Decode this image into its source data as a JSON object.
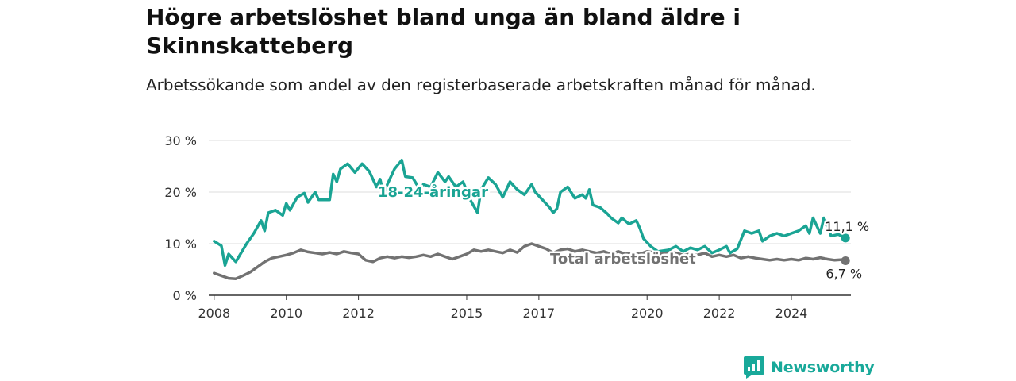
{
  "title": "Högre arbetslöshet bland unga än bland äldre i Skinnskatteberg",
  "subtitle": "Arbetssökande som andel av den registerbaserade arbetskraften månad för månad.",
  "brand": "Newsworthy",
  "colors": {
    "youth": "#1aa494",
    "total": "#727272",
    "grid": "#dddddd",
    "brand": "#19a99a"
  },
  "chart_data": {
    "type": "line",
    "x_ticks": [
      "2008",
      "2010",
      "2012",
      "2015",
      "2017",
      "2020",
      "2022",
      "2024"
    ],
    "y_ticks": [
      "0 %",
      "10 %",
      "20 %",
      "30 %"
    ],
    "ylim": [
      0,
      30
    ],
    "xlim": [
      2007.85,
      2025.65
    ],
    "grid": true,
    "series": [
      {
        "name": "18-24-åringar",
        "color": "#1aa494",
        "end_label": "11,1 %",
        "points": [
          [
            2008.0,
            10.5
          ],
          [
            2008.2,
            9.6
          ],
          [
            2008.3,
            5.8
          ],
          [
            2008.4,
            8.0
          ],
          [
            2008.6,
            6.5
          ],
          [
            2008.9,
            10.0
          ],
          [
            2009.1,
            12.0
          ],
          [
            2009.3,
            14.5
          ],
          [
            2009.4,
            12.5
          ],
          [
            2009.5,
            16.0
          ],
          [
            2009.7,
            16.5
          ],
          [
            2009.9,
            15.5
          ],
          [
            2010.0,
            17.8
          ],
          [
            2010.1,
            16.5
          ],
          [
            2010.3,
            19.0
          ],
          [
            2010.5,
            19.8
          ],
          [
            2010.6,
            18.0
          ],
          [
            2010.8,
            20.0
          ],
          [
            2010.9,
            18.5
          ],
          [
            2011.2,
            18.5
          ],
          [
            2011.3,
            23.5
          ],
          [
            2011.4,
            22.0
          ],
          [
            2011.5,
            24.5
          ],
          [
            2011.7,
            25.5
          ],
          [
            2011.9,
            23.8
          ],
          [
            2012.1,
            25.5
          ],
          [
            2012.3,
            24.0
          ],
          [
            2012.5,
            21.0
          ],
          [
            2012.6,
            22.5
          ],
          [
            2012.7,
            19.5
          ],
          [
            2012.8,
            21.5
          ],
          [
            2013.0,
            24.5
          ],
          [
            2013.2,
            26.2
          ],
          [
            2013.3,
            23.0
          ],
          [
            2013.5,
            22.8
          ],
          [
            2013.7,
            20.5
          ],
          [
            2013.8,
            21.5
          ],
          [
            2014.0,
            21.0
          ],
          [
            2014.2,
            23.8
          ],
          [
            2014.4,
            22.0
          ],
          [
            2014.5,
            23.0
          ],
          [
            2014.7,
            21.0
          ],
          [
            2014.9,
            22.0
          ],
          [
            2015.1,
            18.5
          ],
          [
            2015.3,
            16.0
          ],
          [
            2015.4,
            20.5
          ],
          [
            2015.6,
            22.8
          ],
          [
            2015.8,
            21.5
          ],
          [
            2016.0,
            19.0
          ],
          [
            2016.2,
            22.0
          ],
          [
            2016.4,
            20.5
          ],
          [
            2016.6,
            19.5
          ],
          [
            2016.8,
            21.5
          ],
          [
            2016.9,
            20.0
          ],
          [
            2017.3,
            17.0
          ],
          [
            2017.4,
            16.0
          ],
          [
            2017.5,
            16.8
          ],
          [
            2017.6,
            20.0
          ],
          [
            2017.8,
            21.0
          ],
          [
            2018.0,
            18.8
          ],
          [
            2018.2,
            19.5
          ],
          [
            2018.3,
            18.8
          ],
          [
            2018.4,
            20.5
          ],
          [
            2018.5,
            17.5
          ],
          [
            2018.7,
            17.0
          ],
          [
            2018.9,
            15.8
          ],
          [
            2019.0,
            15.0
          ],
          [
            2019.2,
            14.0
          ],
          [
            2019.3,
            15.0
          ],
          [
            2019.5,
            13.8
          ],
          [
            2019.7,
            14.5
          ],
          [
            2019.8,
            13.0
          ],
          [
            2019.9,
            11.0
          ],
          [
            2020.1,
            9.5
          ],
          [
            2020.3,
            8.5
          ],
          [
            2020.6,
            8.8
          ],
          [
            2020.8,
            9.5
          ],
          [
            2021.0,
            8.5
          ],
          [
            2021.2,
            9.2
          ],
          [
            2021.4,
            8.8
          ],
          [
            2021.6,
            9.5
          ],
          [
            2021.8,
            8.2
          ],
          [
            2022.0,
            8.8
          ],
          [
            2022.2,
            9.5
          ],
          [
            2022.3,
            8.2
          ],
          [
            2022.5,
            9.0
          ],
          [
            2022.7,
            12.5
          ],
          [
            2022.9,
            12.0
          ],
          [
            2023.1,
            12.5
          ],
          [
            2023.2,
            10.5
          ],
          [
            2023.4,
            11.5
          ],
          [
            2023.6,
            12.0
          ],
          [
            2023.8,
            11.5
          ],
          [
            2024.0,
            12.0
          ],
          [
            2024.2,
            12.5
          ],
          [
            2024.4,
            13.5
          ],
          [
            2024.5,
            12.0
          ],
          [
            2024.6,
            15.0
          ],
          [
            2024.8,
            12.0
          ],
          [
            2024.9,
            15.0
          ],
          [
            2025.0,
            13.5
          ],
          [
            2025.1,
            11.5
          ],
          [
            2025.3,
            11.8
          ],
          [
            2025.5,
            11.1
          ]
        ]
      },
      {
        "name": "Total arbetslöshet",
        "color": "#727272",
        "end_label": "6,7 %",
        "points": [
          [
            2008.0,
            4.3
          ],
          [
            2008.2,
            3.8
          ],
          [
            2008.4,
            3.3
          ],
          [
            2008.6,
            3.2
          ],
          [
            2008.8,
            3.8
          ],
          [
            2009.0,
            4.5
          ],
          [
            2009.2,
            5.5
          ],
          [
            2009.4,
            6.5
          ],
          [
            2009.6,
            7.2
          ],
          [
            2009.8,
            7.5
          ],
          [
            2010.0,
            7.8
          ],
          [
            2010.2,
            8.2
          ],
          [
            2010.4,
            8.8
          ],
          [
            2010.6,
            8.4
          ],
          [
            2010.8,
            8.2
          ],
          [
            2011.0,
            8.0
          ],
          [
            2011.2,
            8.3
          ],
          [
            2011.4,
            8.0
          ],
          [
            2011.6,
            8.5
          ],
          [
            2011.8,
            8.2
          ],
          [
            2012.0,
            8.0
          ],
          [
            2012.2,
            6.8
          ],
          [
            2012.4,
            6.5
          ],
          [
            2012.6,
            7.2
          ],
          [
            2012.8,
            7.5
          ],
          [
            2013.0,
            7.2
          ],
          [
            2013.2,
            7.5
          ],
          [
            2013.4,
            7.3
          ],
          [
            2013.6,
            7.5
          ],
          [
            2013.8,
            7.8
          ],
          [
            2014.0,
            7.5
          ],
          [
            2014.2,
            8.0
          ],
          [
            2014.4,
            7.5
          ],
          [
            2014.6,
            7.0
          ],
          [
            2014.8,
            7.5
          ],
          [
            2015.0,
            8.0
          ],
          [
            2015.2,
            8.8
          ],
          [
            2015.4,
            8.5
          ],
          [
            2015.6,
            8.8
          ],
          [
            2015.8,
            8.5
          ],
          [
            2016.0,
            8.2
          ],
          [
            2016.2,
            8.8
          ],
          [
            2016.4,
            8.3
          ],
          [
            2016.6,
            9.5
          ],
          [
            2016.8,
            10.0
          ],
          [
            2017.0,
            9.5
          ],
          [
            2017.2,
            9.0
          ],
          [
            2017.4,
            8.2
          ],
          [
            2017.6,
            8.8
          ],
          [
            2017.8,
            9.0
          ],
          [
            2018.0,
            8.5
          ],
          [
            2018.2,
            8.8
          ],
          [
            2018.4,
            8.5
          ],
          [
            2018.6,
            8.2
          ],
          [
            2018.8,
            8.5
          ],
          [
            2019.0,
            8.0
          ],
          [
            2019.2,
            8.5
          ],
          [
            2019.4,
            8.0
          ],
          [
            2019.6,
            8.2
          ],
          [
            2019.8,
            8.0
          ],
          [
            2020.0,
            8.5
          ],
          [
            2020.2,
            8.3
          ],
          [
            2020.4,
            8.0
          ],
          [
            2020.6,
            8.5
          ],
          [
            2020.8,
            8.2
          ],
          [
            2021.0,
            7.8
          ],
          [
            2021.2,
            8.0
          ],
          [
            2021.4,
            7.8
          ],
          [
            2021.6,
            8.2
          ],
          [
            2021.8,
            7.5
          ],
          [
            2022.0,
            7.8
          ],
          [
            2022.2,
            7.5
          ],
          [
            2022.4,
            7.8
          ],
          [
            2022.6,
            7.2
          ],
          [
            2022.8,
            7.5
          ],
          [
            2023.0,
            7.2
          ],
          [
            2023.2,
            7.0
          ],
          [
            2023.4,
            6.8
          ],
          [
            2023.6,
            7.0
          ],
          [
            2023.8,
            6.8
          ],
          [
            2024.0,
            7.0
          ],
          [
            2024.2,
            6.8
          ],
          [
            2024.4,
            7.2
          ],
          [
            2024.6,
            7.0
          ],
          [
            2024.8,
            7.3
          ],
          [
            2025.0,
            7.0
          ],
          [
            2025.2,
            6.8
          ],
          [
            2025.4,
            6.9
          ],
          [
            2025.5,
            6.7
          ]
        ]
      }
    ]
  }
}
